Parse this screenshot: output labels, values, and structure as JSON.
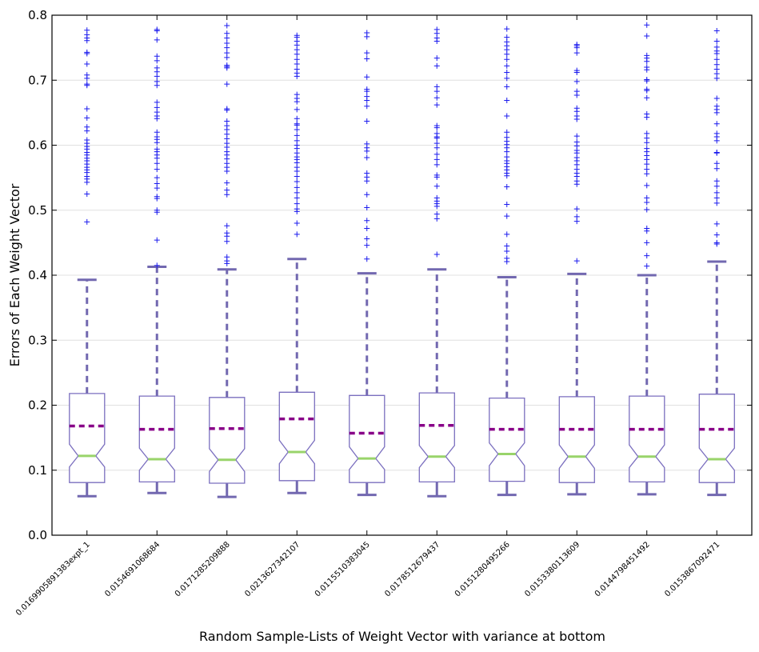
{
  "chart_data": {
    "type": "box",
    "title": "",
    "xlabel": "Random Sample-Lists of Weight Vector with variance at bottom",
    "ylabel": "Errors of Each Weight Vector",
    "ylim": [
      0.0,
      0.8
    ],
    "yticks": [
      "0.0",
      "0.1",
      "0.2",
      "0.3",
      "0.4",
      "0.5",
      "0.6",
      "0.7",
      "0.8"
    ],
    "grid": "horizontal",
    "colors": {
      "box": "#7b6fbf",
      "whisker": "#7268b0",
      "median": "#99d46a",
      "mean": "#880088",
      "flier": "#1a1aee",
      "grid": "#e0e0e0"
    },
    "categories": [
      "0.016990589138​3expt_1",
      "0.0154691068684",
      "0.0171285209888",
      "0.0213627342107",
      "0.0115510383045",
      "0.0178512679437",
      "0.0151280495266",
      "0.0153380113609",
      "0.0144798451492",
      "0.0153867092471"
    ],
    "boxes": [
      {
        "whislo": 0.06,
        "q1": 0.081,
        "notch_lo": 0.105,
        "med": 0.122,
        "notch_hi": 0.14,
        "mean": 0.168,
        "q3": 0.218,
        "whishi": 0.393,
        "fliers": [
          0.482,
          0.525,
          0.543,
          0.548,
          0.552,
          0.558,
          0.562,
          0.566,
          0.571,
          0.576,
          0.58,
          0.585,
          0.589,
          0.594,
          0.598,
          0.603,
          0.608,
          0.622,
          0.628,
          0.642,
          0.656,
          0.692,
          0.694,
          0.703,
          0.708,
          0.725,
          0.741,
          0.743,
          0.761,
          0.765,
          0.77,
          0.777
        ]
      },
      {
        "whislo": 0.065,
        "q1": 0.082,
        "notch_lo": 0.1,
        "med": 0.117,
        "notch_hi": 0.134,
        "mean": 0.163,
        "q3": 0.214,
        "whishi": 0.413,
        "fliers": [
          0.415,
          0.454,
          0.497,
          0.5,
          0.518,
          0.521,
          0.534,
          0.541,
          0.55,
          0.563,
          0.572,
          0.58,
          0.585,
          0.59,
          0.594,
          0.604,
          0.609,
          0.613,
          0.62,
          0.641,
          0.645,
          0.651,
          0.658,
          0.666,
          0.692,
          0.698,
          0.706,
          0.713,
          0.719,
          0.73,
          0.737,
          0.762,
          0.776,
          0.778
        ]
      },
      {
        "whislo": 0.059,
        "q1": 0.08,
        "notch_lo": 0.098,
        "med": 0.116,
        "notch_hi": 0.133,
        "mean": 0.164,
        "q3": 0.212,
        "whishi": 0.409,
        "fliers": [
          0.418,
          0.422,
          0.428,
          0.452,
          0.46,
          0.465,
          0.476,
          0.524,
          0.531,
          0.542,
          0.56,
          0.566,
          0.572,
          0.579,
          0.585,
          0.59,
          0.597,
          0.603,
          0.61,
          0.617,
          0.624,
          0.63,
          0.637,
          0.654,
          0.656,
          0.694,
          0.719,
          0.721,
          0.723,
          0.735,
          0.742,
          0.75,
          0.757,
          0.765,
          0.772,
          0.784
        ]
      },
      {
        "whislo": 0.065,
        "q1": 0.084,
        "notch_lo": 0.11,
        "med": 0.128,
        "notch_hi": 0.146,
        "mean": 0.179,
        "q3": 0.22,
        "whishi": 0.425,
        "fliers": [
          0.463,
          0.48,
          0.498,
          0.502,
          0.51,
          0.519,
          0.527,
          0.535,
          0.544,
          0.552,
          0.56,
          0.566,
          0.573,
          0.578,
          0.582,
          0.588,
          0.595,
          0.6,
          0.607,
          0.615,
          0.624,
          0.631,
          0.633,
          0.641,
          0.655,
          0.667,
          0.672,
          0.678,
          0.706,
          0.711,
          0.717,
          0.725,
          0.732,
          0.74,
          0.747,
          0.754,
          0.76,
          0.766,
          0.769
        ]
      },
      {
        "whislo": 0.062,
        "q1": 0.081,
        "notch_lo": 0.101,
        "med": 0.118,
        "notch_hi": 0.136,
        "mean": 0.157,
        "q3": 0.215,
        "whishi": 0.403,
        "fliers": [
          0.425,
          0.446,
          0.456,
          0.472,
          0.484,
          0.504,
          0.524,
          0.545,
          0.551,
          0.557,
          0.581,
          0.591,
          0.596,
          0.602,
          0.637,
          0.66,
          0.669,
          0.675,
          0.683,
          0.686,
          0.705,
          0.733,
          0.742,
          0.767,
          0.773
        ]
      },
      {
        "whislo": 0.06,
        "q1": 0.082,
        "notch_lo": 0.104,
        "med": 0.121,
        "notch_hi": 0.138,
        "mean": 0.169,
        "q3": 0.219,
        "whishi": 0.409,
        "fliers": [
          0.432,
          0.487,
          0.494,
          0.506,
          0.51,
          0.514,
          0.519,
          0.537,
          0.551,
          0.554,
          0.57,
          0.578,
          0.586,
          0.596,
          0.603,
          0.611,
          0.613,
          0.618,
          0.627,
          0.63,
          0.662,
          0.673,
          0.683,
          0.69,
          0.722,
          0.734,
          0.76,
          0.765,
          0.772,
          0.778
        ]
      },
      {
        "whislo": 0.062,
        "q1": 0.083,
        "notch_lo": 0.107,
        "med": 0.125,
        "notch_hi": 0.142,
        "mean": 0.163,
        "q3": 0.211,
        "whishi": 0.397,
        "fliers": [
          0.421,
          0.426,
          0.437,
          0.445,
          0.463,
          0.491,
          0.509,
          0.536,
          0.553,
          0.557,
          0.562,
          0.567,
          0.572,
          0.576,
          0.582,
          0.59,
          0.596,
          0.601,
          0.606,
          0.612,
          0.62,
          0.645,
          0.669,
          0.69,
          0.703,
          0.712,
          0.722,
          0.732,
          0.74,
          0.747,
          0.753,
          0.759,
          0.766,
          0.779
        ]
      },
      {
        "whislo": 0.063,
        "q1": 0.081,
        "notch_lo": 0.103,
        "med": 0.121,
        "notch_hi": 0.139,
        "mean": 0.163,
        "q3": 0.213,
        "whishi": 0.402,
        "fliers": [
          0.422,
          0.483,
          0.49,
          0.502,
          0.54,
          0.545,
          0.552,
          0.557,
          0.563,
          0.57,
          0.576,
          0.581,
          0.588,
          0.592,
          0.599,
          0.605,
          0.614,
          0.64,
          0.645,
          0.652,
          0.657,
          0.677,
          0.683,
          0.698,
          0.712,
          0.715,
          0.742,
          0.75,
          0.753,
          0.755
        ]
      },
      {
        "whislo": 0.063,
        "q1": 0.082,
        "notch_lo": 0.104,
        "med": 0.121,
        "notch_hi": 0.139,
        "mean": 0.163,
        "q3": 0.214,
        "whishi": 0.4,
        "fliers": [
          0.414,
          0.43,
          0.45,
          0.468,
          0.472,
          0.501,
          0.512,
          0.519,
          0.538,
          0.556,
          0.563,
          0.571,
          0.578,
          0.584,
          0.59,
          0.595,
          0.604,
          0.611,
          0.618,
          0.643,
          0.648,
          0.673,
          0.684,
          0.686,
          0.699,
          0.701,
          0.716,
          0.72,
          0.729,
          0.734,
          0.738,
          0.768,
          0.785
        ]
      },
      {
        "whislo": 0.062,
        "q1": 0.081,
        "notch_lo": 0.1,
        "med": 0.117,
        "notch_hi": 0.134,
        "mean": 0.163,
        "q3": 0.217,
        "whishi": 0.421,
        "fliers": [
          0.448,
          0.45,
          0.462,
          0.479,
          0.511,
          0.519,
          0.527,
          0.537,
          0.545,
          0.564,
          0.572,
          0.588,
          0.589,
          0.607,
          0.613,
          0.618,
          0.633,
          0.65,
          0.655,
          0.66,
          0.672,
          0.703,
          0.71,
          0.717,
          0.724,
          0.732,
          0.741,
          0.745,
          0.751,
          0.76,
          0.776
        ]
      }
    ]
  }
}
